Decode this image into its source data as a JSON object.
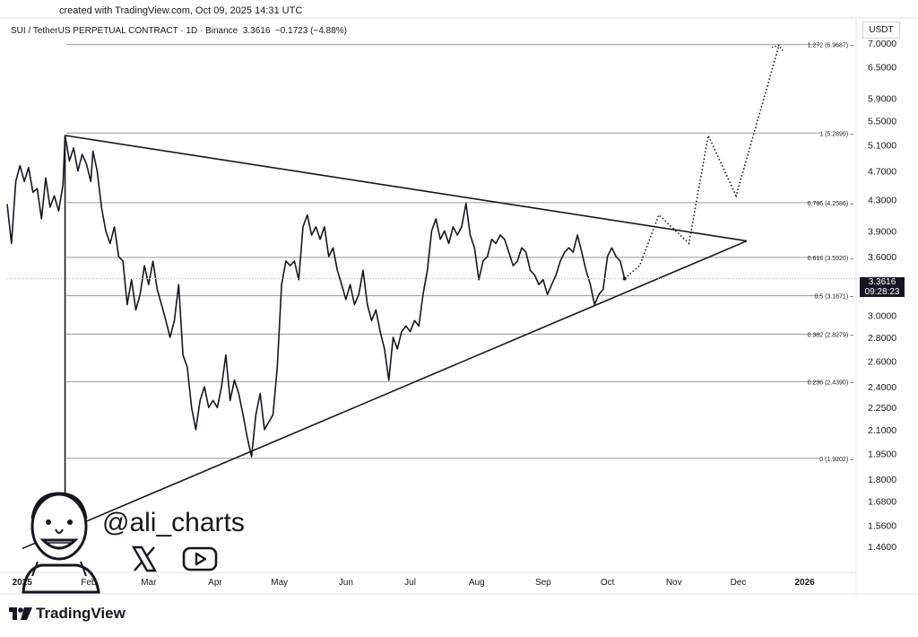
{
  "header": {
    "created_text": "created with TradingView.com, Oct 09, 2025 14:31 UTC",
    "symbol": "SUI / TetherUS PERPETUAL CONTRACT · 1D · Binance",
    "last": "3.3616",
    "change": "−0.1723 (−4.88%)",
    "currency": "USDT"
  },
  "price_tag": {
    "price": "3.3616",
    "countdown": "09:28:23"
  },
  "watermark": {
    "handle": "@ali_charts"
  },
  "footer": {
    "brand": "TradingView"
  },
  "colors": {
    "line": "#131722",
    "grid": "#b2b5be",
    "axis_text": "#131722"
  },
  "icons": [
    "x-icon",
    "youtube-icon",
    "tradingview-logo-icon",
    "avatar-caricature"
  ],
  "chart_data": {
    "type": "line",
    "scale": "log",
    "y_range": [
      1.35,
      7.1
    ],
    "x_range": [
      "2024-12-25",
      "2026-01-25"
    ],
    "x_ticks": [
      {
        "label": "2025",
        "date": "2025-01-01"
      },
      {
        "label": "Feb",
        "date": "2025-02-01"
      },
      {
        "label": "Mar",
        "date": "2025-03-01"
      },
      {
        "label": "Apr",
        "date": "2025-04-01"
      },
      {
        "label": "May",
        "date": "2025-05-01"
      },
      {
        "label": "Jun",
        "date": "2025-06-01"
      },
      {
        "label": "Jul",
        "date": "2025-07-01"
      },
      {
        "label": "Aug",
        "date": "2025-08-01"
      },
      {
        "label": "Sep",
        "date": "2025-09-01"
      },
      {
        "label": "Oct",
        "date": "2025-10-01"
      },
      {
        "label": "Nov",
        "date": "2025-11-01"
      },
      {
        "label": "Dec",
        "date": "2025-12-01"
      },
      {
        "label": "2026",
        "date": "2026-01-01"
      }
    ],
    "y_ticks": [
      "7.0000",
      "6.5000",
      "5.9000",
      "5.5000",
      "5.1000",
      "4.7000",
      "4.3000",
      "3.9000",
      "3.6000",
      "3.0000",
      "2.8000",
      "2.6000",
      "2.4000",
      "2.2500",
      "2.1000",
      "1.9500",
      "1.8000",
      "1.6800",
      "1.5600",
      "1.4600"
    ],
    "fib_levels": [
      {
        "label": "1.272 (6.9687)",
        "value": 6.9687
      },
      {
        "label": "1 (5.2899)",
        "value": 5.2899
      },
      {
        "label": "0.786 (4.2586)",
        "value": 4.2586
      },
      {
        "label": "0.618 (3.5920)",
        "value": 3.592
      },
      {
        "label": "0.5 (3.1871)",
        "value": 3.1871
      },
      {
        "label": "0.382 (2.8279)",
        "value": 2.8279
      },
      {
        "label": "0.236 (2.4390)",
        "value": 2.439
      },
      {
        "label": "0 (1.9202)",
        "value": 1.9202
      }
    ],
    "series": [
      {
        "values": [
          [
            "2024-12-25",
            4.24
          ],
          [
            "2024-12-27",
            3.75
          ],
          [
            "2024-12-29",
            4.55
          ],
          [
            "2024-12-31",
            4.78
          ],
          [
            "2025-01-02",
            4.55
          ],
          [
            "2025-01-04",
            4.75
          ],
          [
            "2025-01-06",
            4.4
          ],
          [
            "2025-01-08",
            4.45
          ],
          [
            "2025-01-10",
            4.05
          ],
          [
            "2025-01-12",
            4.6
          ],
          [
            "2025-01-14",
            4.2
          ],
          [
            "2025-01-16",
            4.35
          ],
          [
            "2025-01-18",
            4.15
          ],
          [
            "2025-01-20",
            4.5
          ],
          [
            "2025-01-21",
            5.25
          ],
          [
            "2025-01-23",
            4.85
          ],
          [
            "2025-01-25",
            5.05
          ],
          [
            "2025-01-27",
            4.7
          ],
          [
            "2025-01-29",
            4.95
          ],
          [
            "2025-01-31",
            4.8
          ],
          [
            "2025-02-02",
            4.55
          ],
          [
            "2025-02-03",
            5.0
          ],
          [
            "2025-02-05",
            4.7
          ],
          [
            "2025-02-07",
            4.2
          ],
          [
            "2025-02-09",
            3.9
          ],
          [
            "2025-02-11",
            3.75
          ],
          [
            "2025-02-13",
            3.95
          ],
          [
            "2025-02-15",
            3.6
          ],
          [
            "2025-02-17",
            3.55
          ],
          [
            "2025-02-19",
            3.1
          ],
          [
            "2025-02-21",
            3.35
          ],
          [
            "2025-02-23",
            3.05
          ],
          [
            "2025-02-25",
            3.2
          ],
          [
            "2025-02-27",
            3.5
          ],
          [
            "2025-03-01",
            3.3
          ],
          [
            "2025-03-03",
            3.55
          ],
          [
            "2025-03-05",
            3.25
          ],
          [
            "2025-03-07",
            3.1
          ],
          [
            "2025-03-09",
            2.95
          ],
          [
            "2025-03-11",
            2.8
          ],
          [
            "2025-03-13",
            2.95
          ],
          [
            "2025-03-15",
            3.3
          ],
          [
            "2025-03-17",
            2.65
          ],
          [
            "2025-03-19",
            2.55
          ],
          [
            "2025-03-21",
            2.25
          ],
          [
            "2025-03-23",
            2.1
          ],
          [
            "2025-03-25",
            2.3
          ],
          [
            "2025-03-27",
            2.4
          ],
          [
            "2025-03-29",
            2.25
          ],
          [
            "2025-03-31",
            2.3
          ],
          [
            "2025-04-02",
            2.25
          ],
          [
            "2025-04-04",
            2.4
          ],
          [
            "2025-04-06",
            2.65
          ],
          [
            "2025-04-08",
            2.3
          ],
          [
            "2025-04-10",
            2.45
          ],
          [
            "2025-04-12",
            2.35
          ],
          [
            "2025-04-14",
            2.2
          ],
          [
            "2025-04-16",
            2.05
          ],
          [
            "2025-04-18",
            1.93
          ],
          [
            "2025-04-20",
            2.2
          ],
          [
            "2025-04-22",
            2.35
          ],
          [
            "2025-04-24",
            2.1
          ],
          [
            "2025-04-26",
            2.15
          ],
          [
            "2025-04-28",
            2.2
          ],
          [
            "2025-04-30",
            2.55
          ],
          [
            "2025-05-02",
            3.3
          ],
          [
            "2025-05-04",
            3.55
          ],
          [
            "2025-05-06",
            3.5
          ],
          [
            "2025-05-08",
            3.55
          ],
          [
            "2025-05-10",
            3.35
          ],
          [
            "2025-05-12",
            3.95
          ],
          [
            "2025-05-14",
            4.1
          ],
          [
            "2025-05-16",
            3.85
          ],
          [
            "2025-05-18",
            3.95
          ],
          [
            "2025-05-20",
            3.8
          ],
          [
            "2025-05-22",
            3.95
          ],
          [
            "2025-05-24",
            3.6
          ],
          [
            "2025-05-26",
            3.7
          ],
          [
            "2025-05-28",
            3.45
          ],
          [
            "2025-05-30",
            3.3
          ],
          [
            "2025-06-01",
            3.15
          ],
          [
            "2025-06-03",
            3.3
          ],
          [
            "2025-06-05",
            3.1
          ],
          [
            "2025-06-07",
            3.2
          ],
          [
            "2025-06-09",
            3.45
          ],
          [
            "2025-06-11",
            3.1
          ],
          [
            "2025-06-13",
            2.95
          ],
          [
            "2025-06-15",
            3.05
          ],
          [
            "2025-06-17",
            2.85
          ],
          [
            "2025-06-19",
            2.7
          ],
          [
            "2025-06-21",
            2.45
          ],
          [
            "2025-06-23",
            2.8
          ],
          [
            "2025-06-25",
            2.7
          ],
          [
            "2025-06-27",
            2.85
          ],
          [
            "2025-06-29",
            2.9
          ],
          [
            "2025-07-01",
            2.85
          ],
          [
            "2025-07-03",
            2.95
          ],
          [
            "2025-07-05",
            2.9
          ],
          [
            "2025-07-07",
            3.2
          ],
          [
            "2025-07-09",
            3.45
          ],
          [
            "2025-07-11",
            3.9
          ],
          [
            "2025-07-13",
            4.05
          ],
          [
            "2025-07-15",
            3.8
          ],
          [
            "2025-07-17",
            3.9
          ],
          [
            "2025-07-19",
            3.75
          ],
          [
            "2025-07-21",
            3.95
          ],
          [
            "2025-07-23",
            3.85
          ],
          [
            "2025-07-25",
            3.95
          ],
          [
            "2025-07-27",
            4.25
          ],
          [
            "2025-07-29",
            3.85
          ],
          [
            "2025-07-31",
            3.7
          ],
          [
            "2025-08-02",
            3.35
          ],
          [
            "2025-08-04",
            3.55
          ],
          [
            "2025-08-06",
            3.6
          ],
          [
            "2025-08-08",
            3.8
          ],
          [
            "2025-08-10",
            3.75
          ],
          [
            "2025-08-12",
            3.85
          ],
          [
            "2025-08-14",
            3.8
          ],
          [
            "2025-08-16",
            3.65
          ],
          [
            "2025-08-18",
            3.5
          ],
          [
            "2025-08-20",
            3.55
          ],
          [
            "2025-08-22",
            3.7
          ],
          [
            "2025-08-24",
            3.65
          ],
          [
            "2025-08-26",
            3.45
          ],
          [
            "2025-08-28",
            3.4
          ],
          [
            "2025-08-30",
            3.3
          ],
          [
            "2025-09-01",
            3.35
          ],
          [
            "2025-09-03",
            3.2
          ],
          [
            "2025-09-05",
            3.3
          ],
          [
            "2025-09-07",
            3.4
          ],
          [
            "2025-09-09",
            3.55
          ],
          [
            "2025-09-11",
            3.65
          ],
          [
            "2025-09-13",
            3.7
          ],
          [
            "2025-09-15",
            3.65
          ],
          [
            "2025-09-17",
            3.85
          ],
          [
            "2025-09-19",
            3.65
          ],
          [
            "2025-09-21",
            3.45
          ],
          [
            "2025-09-23",
            3.3
          ],
          [
            "2025-09-25",
            3.1
          ],
          [
            "2025-09-27",
            3.2
          ],
          [
            "2025-09-29",
            3.25
          ],
          [
            "2025-10-01",
            3.6
          ],
          [
            "2025-10-03",
            3.7
          ],
          [
            "2025-10-05",
            3.6
          ],
          [
            "2025-10-07",
            3.55
          ],
          [
            "2025-10-09",
            3.3616
          ]
        ]
      }
    ],
    "projection": [
      [
        "2025-10-16",
        3.5
      ],
      [
        "2025-10-25",
        4.1
      ],
      [
        "2025-11-08",
        3.75
      ],
      [
        "2025-11-17",
        5.25
      ],
      [
        "2025-11-30",
        4.35
      ],
      [
        "2025-12-20",
        6.95
      ]
    ],
    "trendlines": [
      {
        "from": [
          "2025-01-21",
          5.25
        ],
        "to": [
          "2025-12-05",
          3.78
        ]
      },
      {
        "from": [
          "2025-01-01",
          1.45
        ],
        "to": [
          "2025-12-05",
          3.78
        ]
      }
    ],
    "vertical_line": {
      "date": "2025-01-21"
    }
  }
}
